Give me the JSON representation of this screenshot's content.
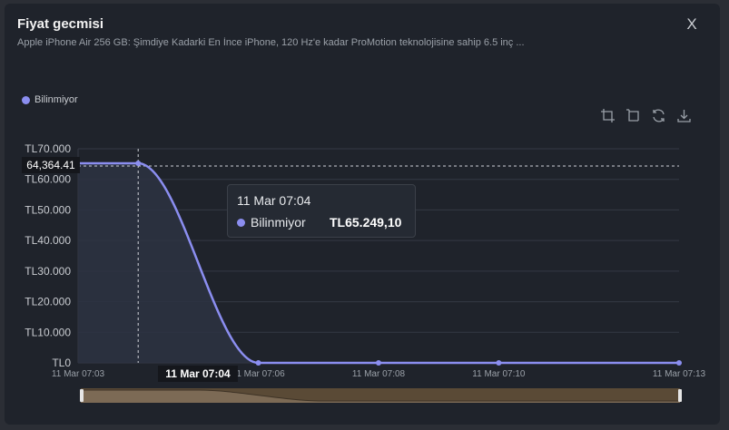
{
  "modal": {
    "title": "Fiyat gecmisi",
    "subtitle": "Apple iPhone Air 256 GB: Şimdiye Kadarki En İnce iPhone, 120 Hz'e kadar ProMotion teknolojisine sahip 6.5 inç ...",
    "close_label": "X"
  },
  "toolbar": {
    "icons": [
      "crop-icon",
      "crop-reset-icon",
      "refresh-icon",
      "download-icon"
    ]
  },
  "tooltip": {
    "time": "11 Mar 07:04",
    "series": "Bilinmiyor",
    "value": "TL65.249,10"
  },
  "crosshair": {
    "y_label": "64,364.41",
    "x_label": "11 Mar 07:04"
  },
  "colors": {
    "series": "#8b8ef0",
    "background": "#1f232b",
    "slider": "#5a4a36"
  },
  "chart_data": {
    "type": "line",
    "legend_position": "top-left",
    "grid": true,
    "series": [
      {
        "name": "Bilinmiyor",
        "x": [
          "11 Mar 07:03",
          "11 Mar 07:04",
          "11 Mar 07:06",
          "11 Mar 07:08",
          "11 Mar 07:10",
          "11 Mar 07:13"
        ],
        "values": [
          65249.1,
          65249.1,
          0,
          0,
          0,
          0
        ]
      }
    ],
    "x_ticks": [
      "11 Mar 07:03",
      "11 Mar 07:06",
      "11 Mar 07:08",
      "11 Mar 07:10",
      "11 Mar 07:13"
    ],
    "y_ticks": [
      "TL0",
      "TL10.000",
      "TL20.000",
      "TL30.000",
      "TL40.000",
      "TL50.000",
      "TL60.000",
      "TL70.000"
    ],
    "ylim": [
      0,
      70000
    ]
  }
}
